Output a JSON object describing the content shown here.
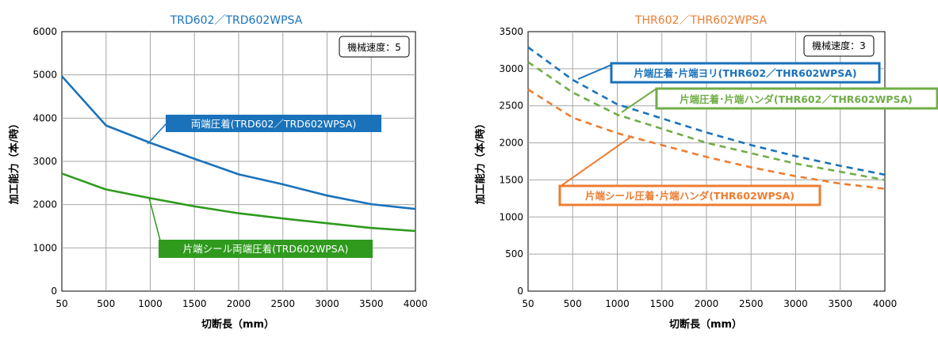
{
  "chart_data": [
    {
      "type": "line",
      "title": "TRD602／TRD602WPSA",
      "title_color": "#1a72bb",
      "xlabel": "切断長（mm）",
      "ylabel": "加工能力（本/時）",
      "categories": [
        "50",
        "500",
        "1000",
        "1500",
        "2000",
        "2500",
        "3000",
        "3500",
        "4000"
      ],
      "ylim": [
        0,
        6000
      ],
      "yticks": [
        0,
        1000,
        2000,
        3000,
        4000,
        5000,
        6000
      ],
      "ytick_labels": [
        "0",
        "1000",
        "2000",
        "3000",
        "4000",
        "5000",
        "6000"
      ],
      "grid": true,
      "annotation": "機械速度：5",
      "series": [
        {
          "name": "両端圧着(TRD602／TRD602WPSA)",
          "color": "#1a72bb",
          "dash": false,
          "values": [
            4970,
            3830,
            3430,
            3060,
            2700,
            2470,
            2210,
            2010,
            1900
          ]
        },
        {
          "name": "片端シール両端圧着(TRD602WPSA)",
          "color": "#2f9a1e",
          "dash": false,
          "values": [
            2720,
            2350,
            2150,
            1960,
            1800,
            1680,
            1570,
            1460,
            1390
          ]
        }
      ]
    },
    {
      "type": "line",
      "title": "THR602／THR602WPSA",
      "title_color": "#ed7d31",
      "xlabel": "切断長（mm）",
      "ylabel": "加工能力（本/時）",
      "categories": [
        "50",
        "500",
        "1000",
        "1500",
        "2000",
        "2500",
        "3000",
        "3500",
        "4000"
      ],
      "ylim": [
        0,
        3500
      ],
      "yticks": [
        0,
        500,
        1000,
        1500,
        2000,
        2500,
        3000,
        3500
      ],
      "ytick_labels": [
        "0",
        "500",
        "1000",
        "1500",
        "2000",
        "2500",
        "3000",
        "3500"
      ],
      "grid": true,
      "annotation": "機械速度：3",
      "series": [
        {
          "name": "片端圧着･片端ヨリ(THR602／THR602WPSA)",
          "color": "#1a72bb",
          "dash": true,
          "values": [
            3290,
            2850,
            2520,
            2330,
            2140,
            1970,
            1820,
            1690,
            1570
          ]
        },
        {
          "name": "片端圧着･片端ハンダ(THR602／THR602WPSA)",
          "color": "#70ad47",
          "dash": true,
          "values": [
            3090,
            2680,
            2380,
            2190,
            2000,
            1860,
            1720,
            1610,
            1500
          ]
        },
        {
          "name": "片端シール圧着･片端ハンダ(THR602WPSA)",
          "color": "#ed7d31",
          "dash": true,
          "values": [
            2720,
            2340,
            2130,
            1970,
            1810,
            1670,
            1550,
            1450,
            1380
          ]
        }
      ]
    }
  ]
}
